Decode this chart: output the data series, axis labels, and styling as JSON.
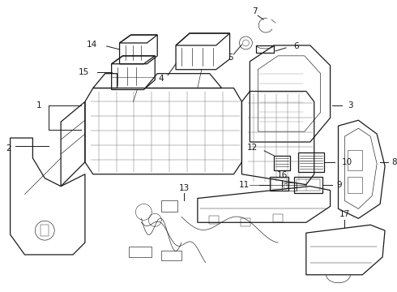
{
  "background_color": "#ffffff",
  "line_color": "#1a1a1a",
  "fig_width": 4.9,
  "fig_height": 3.6,
  "dpi": 100,
  "label_font": 7.5,
  "lw_main": 0.9,
  "lw_thin": 0.45,
  "lw_grid": 0.28
}
